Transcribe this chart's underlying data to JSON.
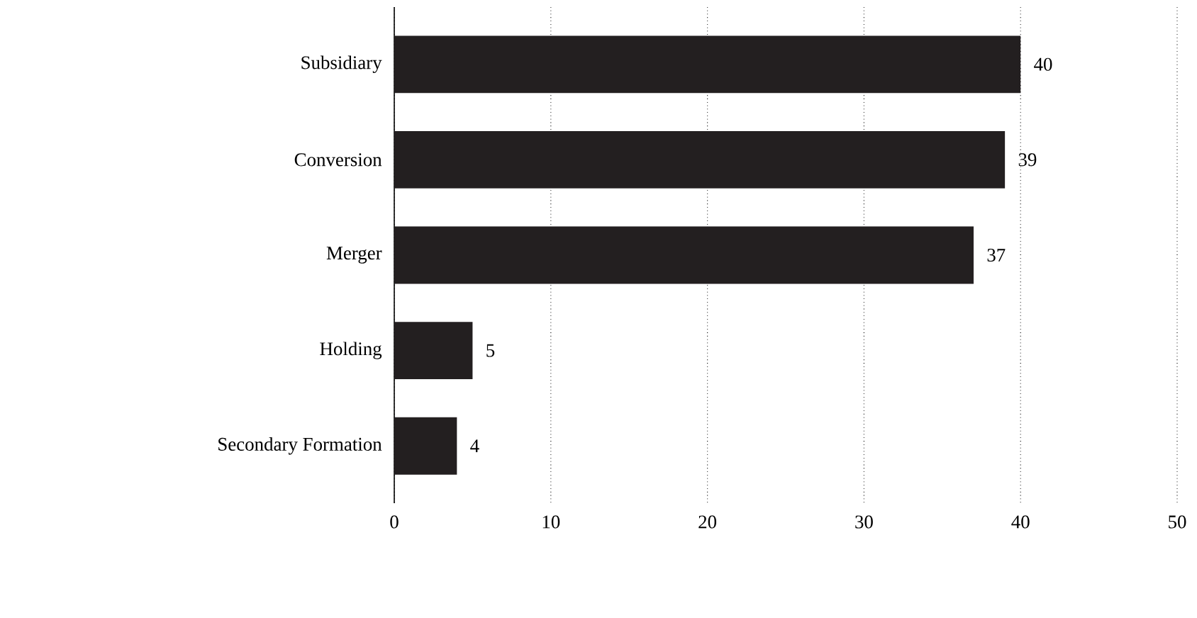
{
  "chart_data": {
    "type": "bar",
    "orientation": "horizontal",
    "categories": [
      "Subsidiary",
      "Conversion",
      "Merger",
      "Holding",
      "Secondary Formation"
    ],
    "values": [
      40,
      39,
      37,
      5,
      4
    ],
    "color": "#231f20",
    "xlim": [
      0,
      50
    ],
    "xticks": [
      0,
      10,
      20,
      30,
      40,
      50
    ],
    "grid": "x",
    "data_labels": true
  }
}
